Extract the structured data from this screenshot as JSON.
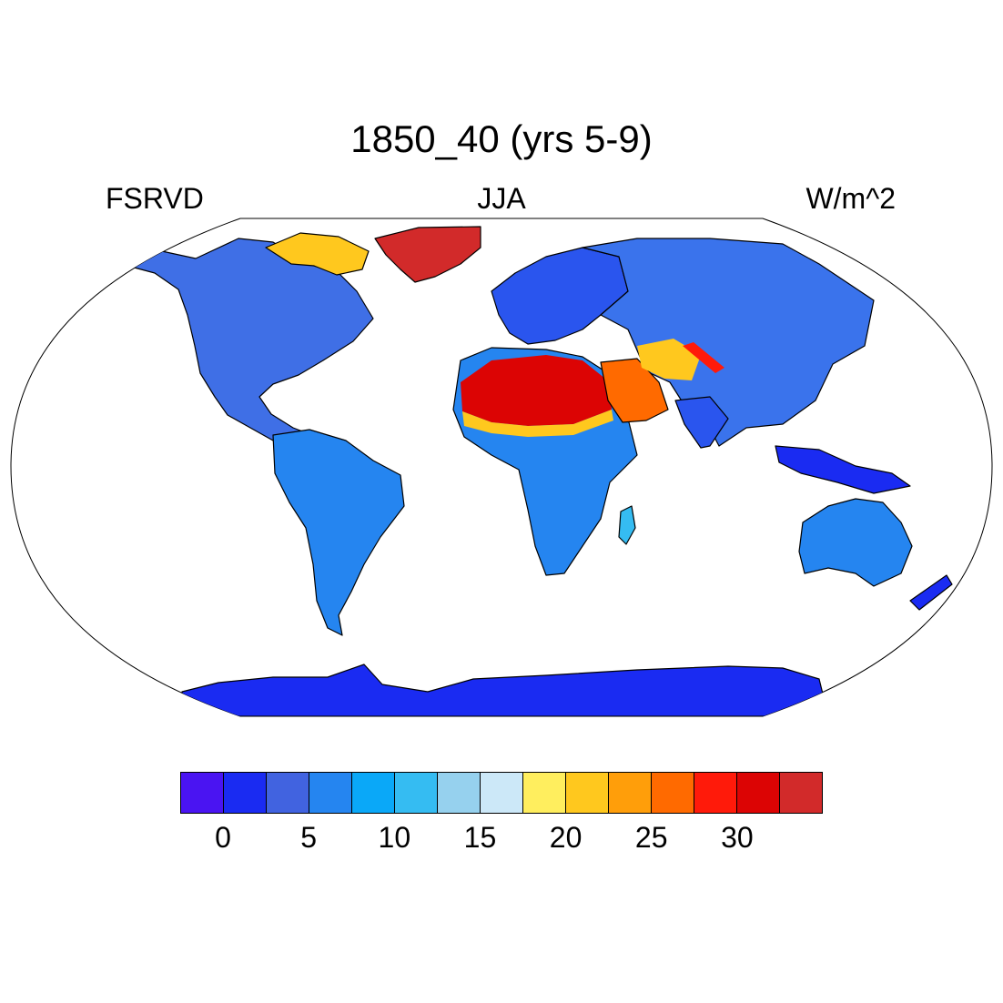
{
  "title": "1850_40 (yrs 5-9)",
  "left_string": "FSRVD",
  "center_string": "JJA",
  "right_string": "W/m^2",
  "projection": "robinson",
  "colorbar": {
    "colors": [
      "#4a14f2",
      "#1a2bf2",
      "#4163e0",
      "#2585f0",
      "#0aa8f8",
      "#35bcf2",
      "#96d1ee",
      "#cce8f8",
      "#ffee5e",
      "#ffc81e",
      "#ff9e0a",
      "#ff6a00",
      "#ff1a0a",
      "#dc0404",
      "#d22a2a"
    ],
    "tick_labels": [
      "0",
      "5",
      "10",
      "15",
      "20",
      "25",
      "30"
    ]
  },
  "regions": [
    {
      "name": "greenland",
      "level": 14
    },
    {
      "name": "sahara",
      "level": 13
    },
    {
      "name": "arabia",
      "level": 12
    },
    {
      "name": "tibet-streak",
      "level": 12
    },
    {
      "name": "antarctica",
      "level": 1
    }
  ]
}
